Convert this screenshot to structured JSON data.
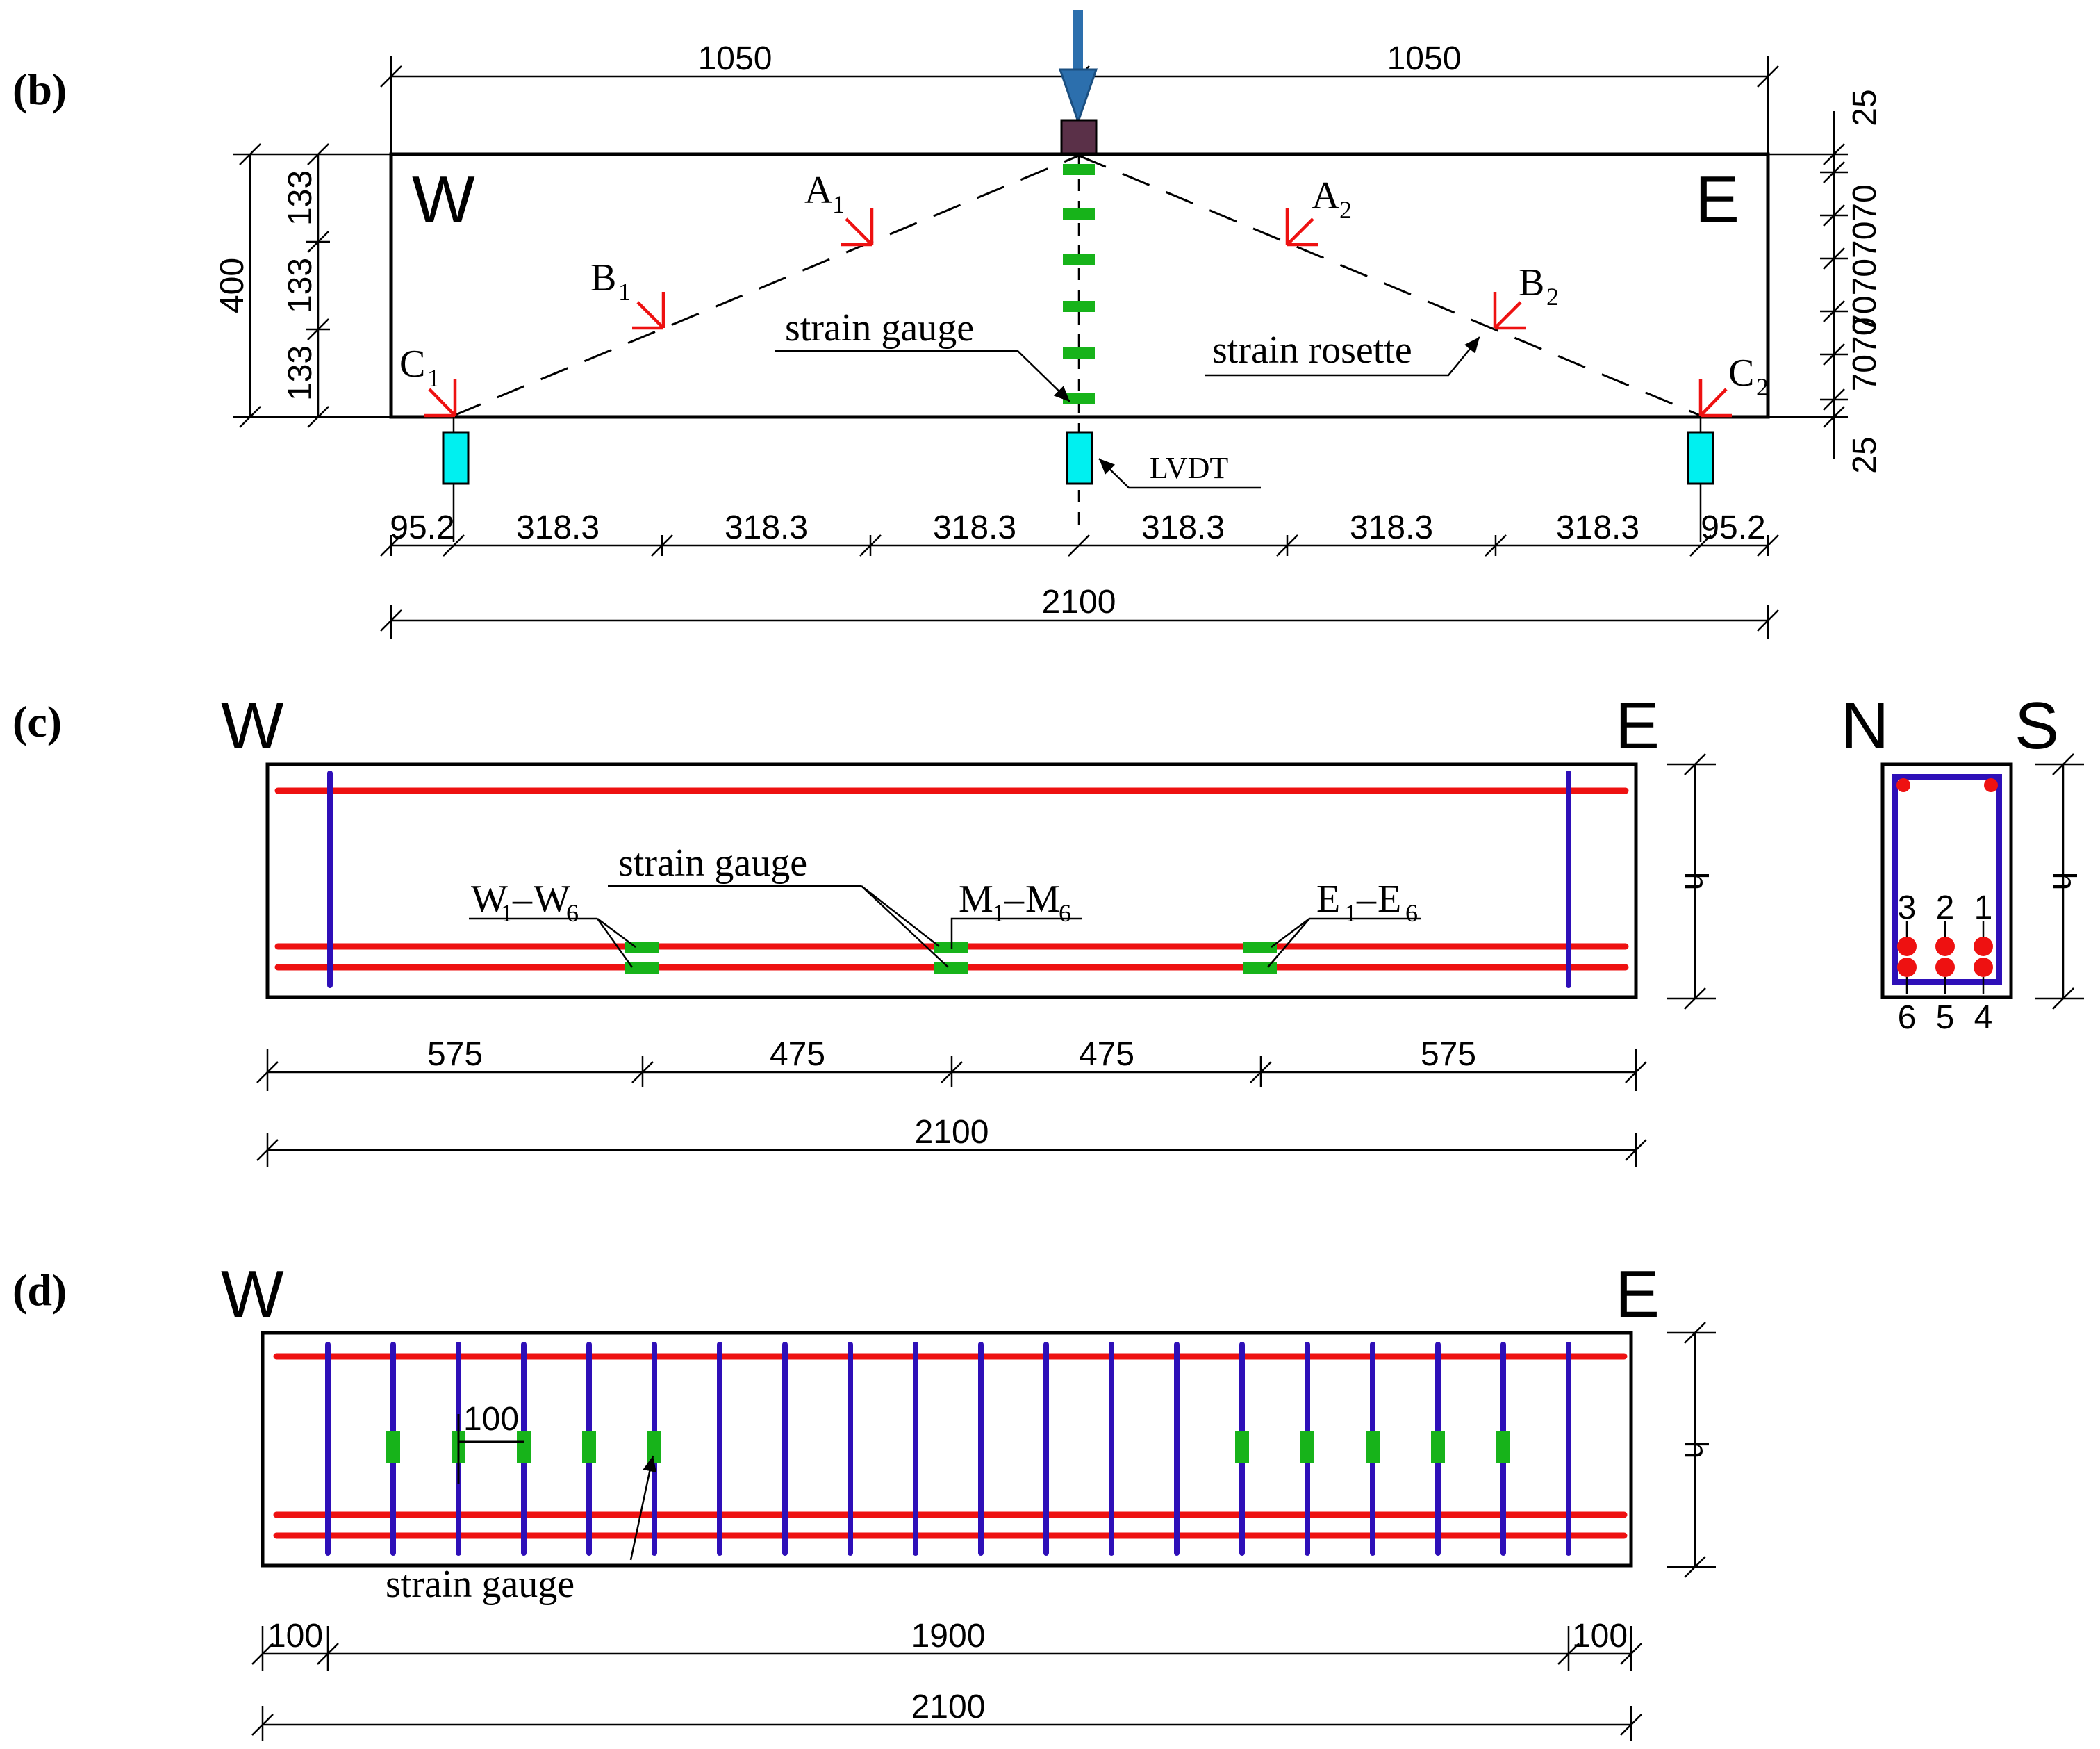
{
  "colors": {
    "rebar": "#ee1111",
    "stirrup": "#2e0fb8",
    "gauge": "#17b31a",
    "lvdt": "#00f0f0",
    "load_plate": "#5a3048",
    "load_arrow": "#2c6fad"
  },
  "panel_b": {
    "label": "(b)",
    "top_left": "1050",
    "top_right": "1050",
    "west": "W",
    "east": "E",
    "height_total": "400",
    "height_parts": [
      "133",
      "133",
      "133"
    ],
    "right_top": "25",
    "right_mid": "70707070",
    "right_mid2": "7070",
    "right_bottom": "25",
    "rosettes": [
      {
        "letter": "A",
        "sub": "1"
      },
      {
        "letter": "B",
        "sub": "1"
      },
      {
        "letter": "C",
        "sub": "1"
      },
      {
        "letter": "A",
        "sub": "2"
      },
      {
        "letter": "B",
        "sub": "2"
      },
      {
        "letter": "C",
        "sub": "2"
      }
    ],
    "strain_gauge_label": "strain gauge",
    "strain_rosette_label": "strain rosette",
    "lvdt_label": "LVDT",
    "spans": [
      "95.2",
      "318.3",
      "318.3",
      "318.3",
      "318.3",
      "318.3",
      "318.3",
      "95.2"
    ],
    "total": "2100"
  },
  "panel_c": {
    "label": "(c)",
    "west": "W",
    "east": "E",
    "north": "N",
    "south": "S",
    "h": "h",
    "h2": "h",
    "strain_gauge_label": "strain gauge",
    "groups": [
      {
        "a": "W",
        "a_sub": "1",
        "b": "W",
        "b_sub": "6"
      },
      {
        "a": "M",
        "a_sub": "1",
        "b": "M",
        "b_sub": "6"
      },
      {
        "a": "E",
        "a_sub": "1",
        "b": "E",
        "b_sub": "6"
      }
    ],
    "dash": "–",
    "spans": [
      "575",
      "475",
      "475",
      "575"
    ],
    "total": "2100",
    "bar_numbers_top": [
      "3",
      "2",
      "1"
    ],
    "bar_numbers_bottom": [
      "6",
      "5",
      "4"
    ]
  },
  "panel_d": {
    "label": "(d)",
    "west": "W",
    "east": "E",
    "h": "h",
    "spacing": "100",
    "strain_gauge_label": "strain gauge",
    "spans": [
      "100",
      "1900",
      "100"
    ],
    "total": "2100"
  }
}
